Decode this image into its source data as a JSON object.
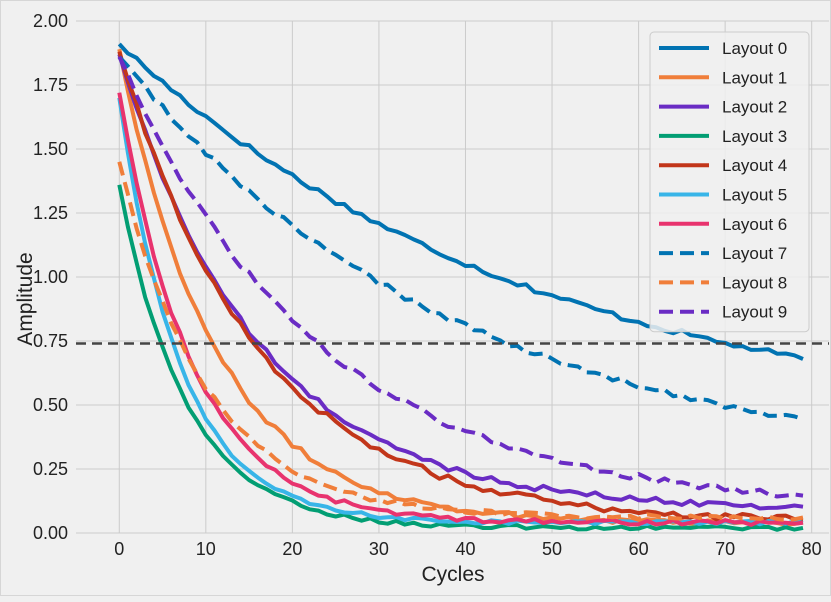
{
  "chart_data": {
    "type": "line",
    "title": "",
    "xlabel": "Cycles",
    "ylabel": "Amplitude",
    "xlim": [
      -5,
      82
    ],
    "ylim": [
      0,
      2.0
    ],
    "xticks": [
      "0",
      "10",
      "20",
      "30",
      "40",
      "50",
      "60",
      "70",
      "80"
    ],
    "yticks": [
      "0.00",
      "0.25",
      "0.50",
      "0.75",
      "1.00",
      "1.25",
      "1.50",
      "1.75",
      "2.00"
    ],
    "grid": true,
    "legend_position": "top-right",
    "threshold": {
      "value": 0.74,
      "style": "dashed",
      "color": "#444444"
    },
    "series": [
      {
        "name": "Layout 0",
        "color": "#0173b2",
        "dash": "solid",
        "start": 1.91,
        "end": 0.37,
        "rate": 0.0203,
        "noise": 0.012
      },
      {
        "name": "Layout 1",
        "color": "#f07e3a",
        "dash": "solid",
        "start": 1.89,
        "end": 0.04,
        "rate": 0.09,
        "noise": 0.012
      },
      {
        "name": "Layout 2",
        "color": "#6a2cc4",
        "dash": "solid",
        "start": 1.87,
        "end": 0.09,
        "rate": 0.0625,
        "noise": 0.012
      },
      {
        "name": "Layout 3",
        "color": "#029e73",
        "dash": "solid",
        "start": 1.36,
        "end": 0.02,
        "rate": 0.13,
        "noise": 0.008
      },
      {
        "name": "Layout 4",
        "color": "#c2361a",
        "dash": "solid",
        "start": 1.88,
        "end": 0.04,
        "rate": 0.062,
        "noise": 0.014
      },
      {
        "name": "Layout 5",
        "color": "#38b5e8",
        "dash": "solid",
        "start": 1.7,
        "end": 0.04,
        "rate": 0.14,
        "noise": 0.008
      },
      {
        "name": "Layout 6",
        "color": "#e8336e",
        "dash": "solid",
        "start": 1.72,
        "end": 0.04,
        "rate": 0.118,
        "noise": 0.01
      },
      {
        "name": "Layout 7",
        "color": "#0173b2",
        "dash": "dashed",
        "start": 1.86,
        "end": 0.24,
        "rate": 0.0262,
        "noise": 0.012
      },
      {
        "name": "Layout 8",
        "color": "#f07e3a",
        "dash": "dashed",
        "start": 1.45,
        "end": 0.06,
        "rate": 0.1,
        "noise": 0.01
      },
      {
        "name": "Layout 9",
        "color": "#6a2cc4",
        "dash": "dashed",
        "start": 1.86,
        "end": 0.09,
        "rate": 0.0437,
        "noise": 0.012
      }
    ]
  }
}
